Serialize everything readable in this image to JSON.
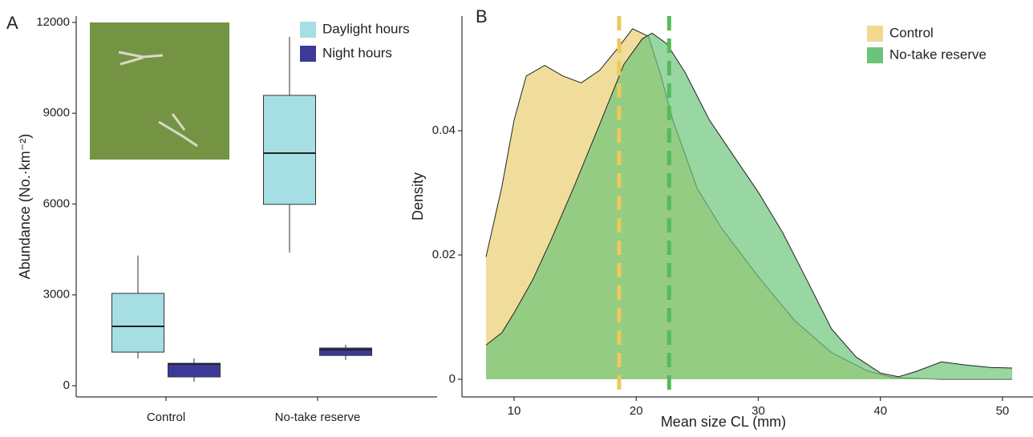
{
  "chart_data": [
    {
      "type": "box",
      "panel_label": "A",
      "y_label": "Abundance (No.·km⁻²)",
      "categories": [
        "Control",
        "No-take reserve"
      ],
      "ylim": [
        -370,
        12210
      ],
      "yticks": [
        0,
        3000,
        6000,
        9000,
        12000
      ],
      "legend": "top-right",
      "series": [
        {
          "name": "Daylight hours",
          "color": "#a5dfe4",
          "values": [
            {
              "min": 900,
              "q1": 1110,
              "median": 1960,
              "q3": 3050,
              "max": 4300
            },
            {
              "min": 4400,
              "q1": 5990,
              "median": 7680,
              "q3": 9590,
              "max": 11520
            }
          ]
        },
        {
          "name": "Night hours",
          "color": "#3c3a99",
          "values": [
            {
              "min": 130,
              "q1": 290,
              "median": 715,
              "q3": 740,
              "max": 900
            },
            {
              "min": 850,
              "q1": 1000,
              "median": 1190,
              "q3": 1245,
              "max": 1350
            }
          ]
        }
      ]
    },
    {
      "type": "density",
      "panel_label": "B",
      "x_label": "Mean size CL (mm)",
      "y_label": "Density",
      "xlim": [
        5.73,
        52.5
      ],
      "xticks": [
        10,
        20,
        30,
        40,
        50
      ],
      "ylim": [
        -0.00284,
        0.05845
      ],
      "yticks": [
        0,
        0.02,
        0.04
      ],
      "legend": "top-right",
      "series": [
        {
          "name": "Control",
          "color": "#f0d990",
          "line_color": "#efc85a",
          "mean": 18.6,
          "x": [
            7.7,
            9,
            10,
            11,
            12.5,
            14,
            15.5,
            17,
            18.5,
            19.7,
            21,
            22,
            23,
            25,
            27,
            30,
            33,
            36,
            39,
            41,
            45,
            50.8
          ],
          "values": [
            0.0197,
            0.031,
            0.0417,
            0.0488,
            0.0505,
            0.0488,
            0.0477,
            0.0497,
            0.0533,
            0.0564,
            0.0552,
            0.049,
            0.0417,
            0.0307,
            0.0243,
            0.0165,
            0.0094,
            0.0043,
            0.0013,
            0.0003,
            0,
            0
          ]
        },
        {
          "name": "No-take reserve",
          "color": "#6cc47a",
          "line_color": "#55bb5a",
          "mean": 22.7,
          "x": [
            7.7,
            9,
            10,
            11.5,
            13,
            15,
            17,
            19,
            20.5,
            21.3,
            22.5,
            24,
            26,
            28,
            30,
            32,
            34,
            36,
            38,
            40,
            41.5,
            43,
            45,
            47,
            49,
            50.8
          ],
          "values": [
            0.0055,
            0.0075,
            0.0107,
            0.0159,
            0.0223,
            0.0314,
            0.041,
            0.0507,
            0.0548,
            0.0557,
            0.054,
            0.0494,
            0.0417,
            0.0359,
            0.0301,
            0.0236,
            0.0159,
            0.0081,
            0.0036,
            0.001,
            0.0004,
            0.0013,
            0.0028,
            0.0023,
            0.0019,
            0.0018
          ]
        }
      ]
    }
  ]
}
